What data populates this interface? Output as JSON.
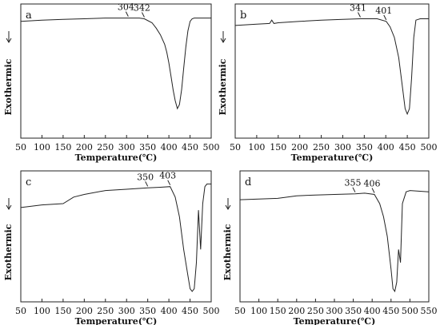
{
  "chart_data": [
    {
      "type": "line",
      "panel_label": "a",
      "xlabel": "Temperature(℃)",
      "ylabel": "Exothermic",
      "xlim": [
        50,
        500
      ],
      "xticks": [
        50,
        100,
        150,
        200,
        250,
        300,
        350,
        400,
        450,
        500
      ],
      "ylim": [
        0,
        100
      ],
      "annotations": [
        {
          "text": "304",
          "x": 304
        },
        {
          "text": "342",
          "x": 342
        }
      ],
      "series": [
        {
          "x": [
            50,
            100,
            150,
            200,
            250,
            300,
            330,
            342,
            360,
            370,
            380,
            390,
            395,
            400,
            405,
            410,
            415,
            420,
            425,
            430,
            435,
            440,
            445,
            450,
            455,
            460,
            470,
            490,
            500
          ],
          "y": [
            87,
            88,
            88.5,
            89,
            89.5,
            89.5,
            89.5,
            89,
            86,
            82,
            77,
            70,
            64,
            56,
            46,
            36,
            28,
            22,
            25,
            36,
            52,
            68,
            80,
            87,
            89,
            89.5,
            89.5,
            89.5,
            89.5
          ]
        }
      ]
    },
    {
      "type": "line",
      "panel_label": "b",
      "xlabel": "Temperature(℃)",
      "ylabel": "Exothermic",
      "xlim": [
        50,
        500
      ],
      "xticks": [
        50,
        100,
        150,
        200,
        250,
        300,
        350,
        400,
        450,
        500
      ],
      "ylim": [
        0,
        100
      ],
      "annotations": [
        {
          "text": "341",
          "x": 341
        },
        {
          "text": "401",
          "x": 401
        }
      ],
      "series": [
        {
          "x": [
            50,
            100,
            130,
            135,
            140,
            150,
            200,
            250,
            300,
            341,
            380,
            401,
            410,
            420,
            430,
            440,
            445,
            450,
            455,
            460,
            465,
            470,
            480,
            500
          ],
          "y": [
            84,
            85,
            85.5,
            88,
            85.5,
            86,
            87,
            88,
            88.5,
            89,
            89,
            87,
            83,
            75,
            60,
            35,
            22,
            18,
            22,
            45,
            75,
            88,
            89,
            89
          ]
        }
      ]
    },
    {
      "type": "line",
      "panel_label": "c",
      "xlabel": "Temperature(℃)",
      "ylabel": "Exothermic",
      "xlim": [
        50,
        500
      ],
      "xticks": [
        50,
        100,
        150,
        200,
        250,
        300,
        350,
        400,
        450,
        500
      ],
      "ylim": [
        0,
        100
      ],
      "annotations": [
        {
          "text": "350",
          "x": 350
        },
        {
          "text": "403",
          "x": 403
        }
      ],
      "series": [
        {
          "x": [
            50,
            100,
            150,
            175,
            200,
            250,
            300,
            350,
            380,
            403,
            415,
            425,
            435,
            445,
            450,
            455,
            460,
            465,
            470,
            475,
            480,
            485,
            490,
            500
          ],
          "y": [
            72,
            74,
            75,
            80,
            82,
            85,
            86,
            87,
            87.5,
            88,
            80,
            65,
            40,
            20,
            10,
            8,
            10,
            30,
            70,
            40,
            75,
            88,
            90,
            90
          ]
        }
      ]
    },
    {
      "type": "line",
      "panel_label": "d",
      "xlabel": "Temperature(℃)",
      "ylabel": "Exothermic",
      "xlim": [
        50,
        550
      ],
      "xticks": [
        50,
        100,
        150,
        200,
        250,
        300,
        350,
        400,
        450,
        500,
        550
      ],
      "ylim": [
        0,
        100
      ],
      "annotations": [
        {
          "text": "355",
          "x": 355
        },
        {
          "text": "406",
          "x": 406
        }
      ],
      "series": [
        {
          "x": [
            50,
            100,
            150,
            200,
            250,
            300,
            355,
            380,
            406,
            420,
            430,
            440,
            450,
            455,
            460,
            465,
            470,
            475,
            480,
            490,
            500,
            550
          ],
          "y": [
            78,
            78.5,
            79,
            81,
            81.5,
            82,
            82.5,
            83,
            82,
            75,
            65,
            50,
            25,
            10,
            8,
            15,
            40,
            30,
            75,
            84,
            85,
            84
          ]
        }
      ]
    }
  ]
}
